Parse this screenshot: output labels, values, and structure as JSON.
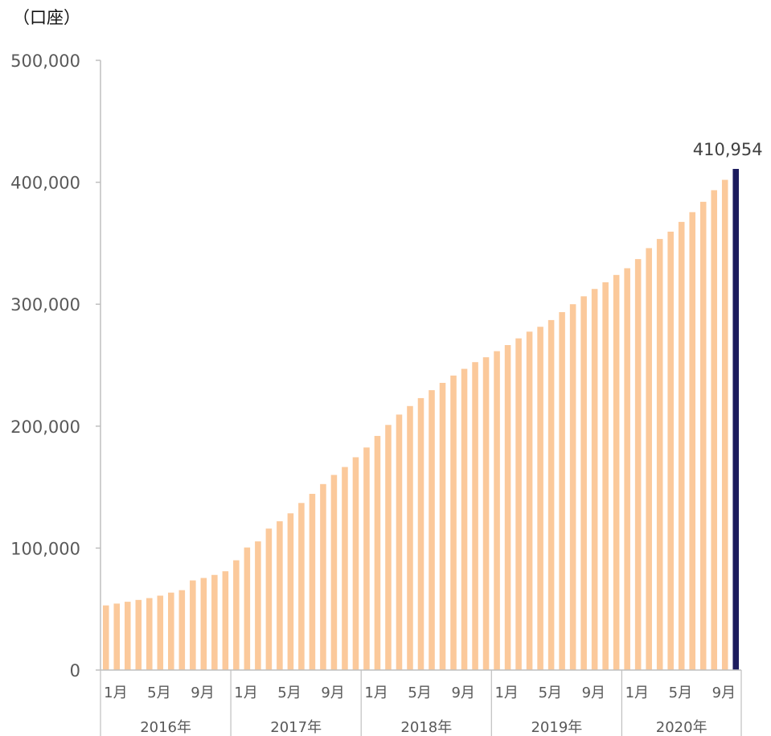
{
  "chart_data": {
    "type": "bar",
    "unit_label": "（口座）",
    "y_ticks": [
      "500,000",
      "400,000",
      "300,000",
      "200,000",
      "100,000",
      "0"
    ],
    "y_tick_values": [
      500000,
      400000,
      300000,
      200000,
      100000,
      0
    ],
    "ylim": [
      0,
      500000
    ],
    "grid": false,
    "month_labels": [
      "1月",
      "5月",
      "9月"
    ],
    "years": [
      "2016年",
      "2017年",
      "2018年",
      "2019年",
      "2020年"
    ],
    "values": [
      53000,
      54500,
      56000,
      57500,
      59000,
      61000,
      63500,
      65500,
      73500,
      75500,
      78000,
      81000,
      90000,
      100500,
      105500,
      116000,
      122000,
      128500,
      137000,
      144500,
      152500,
      160000,
      166500,
      174500,
      182500,
      192000,
      201000,
      209500,
      216500,
      223000,
      229500,
      235500,
      241500,
      247000,
      252500,
      256500,
      261500,
      266500,
      272000,
      277500,
      281500,
      287000,
      293500,
      300000,
      306500,
      312500,
      318000,
      324000,
      329500,
      337000,
      346000,
      353500,
      359500,
      367500,
      375500,
      384000,
      393500,
      402000,
      410954
    ],
    "highlight_index": 58,
    "highlight_label": "410,954",
    "colors": {
      "bar": "#fbc99b",
      "highlight": "#1c1c5e",
      "axis": "#bfbfbf",
      "text": "#595959"
    }
  }
}
